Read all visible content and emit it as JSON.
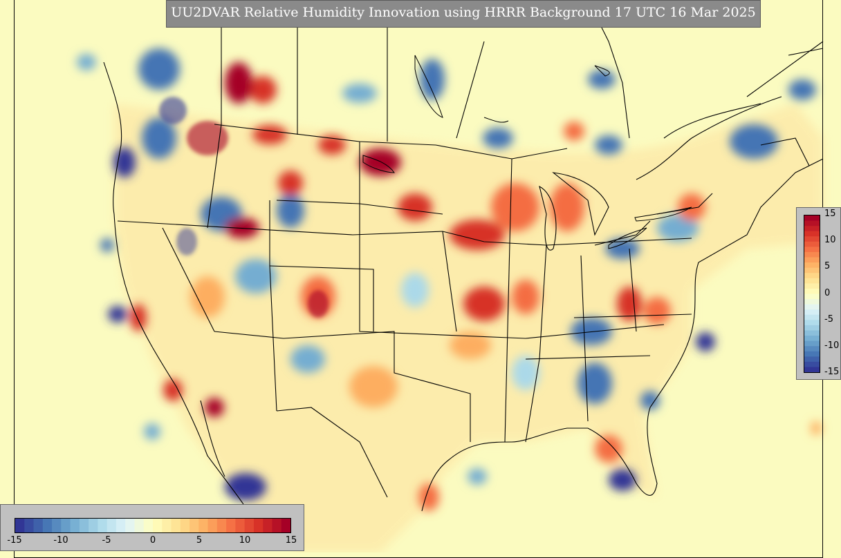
{
  "title": "UU2DVAR Relative Humidity Innovation using HRRR Background 17 UTC 16 Mar 2025",
  "variable": "Relative Humidity Innovation",
  "colorbar": {
    "min": -15,
    "max": 15,
    "vertical_ticks": [
      "15",
      "10",
      "5",
      "0",
      "-5",
      "-10",
      "-15"
    ],
    "horizontal_ticks": [
      "-15",
      "-10",
      "-5",
      "0",
      "5",
      "10",
      "15"
    ],
    "colors": [
      "#313695",
      "#4575b4",
      "#74add1",
      "#abd9e9",
      "#e0f3f8",
      "#ffffbf",
      "#fee090",
      "#fdae61",
      "#f46d43",
      "#d73027",
      "#a50026"
    ]
  },
  "background_color": "#fbfbc0",
  "panel_color": "#c0c0c0",
  "title_box_color": "#8a8a8a"
}
